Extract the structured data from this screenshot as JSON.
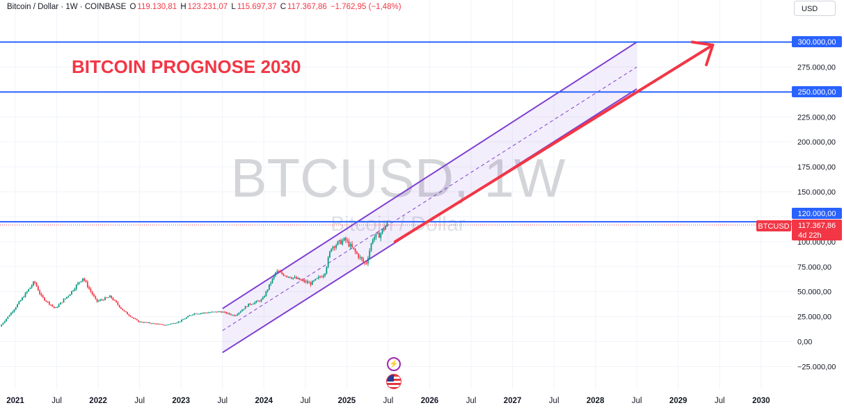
{
  "header": {
    "symbol_title": "Bitcoin / Dollar · 1W · COINBASE",
    "open_label": "O",
    "open": "119.130,81",
    "high_label": "H",
    "high": "123.231,07",
    "low_label": "L",
    "low": "115.697,37",
    "close_label": "C",
    "close": "117.367,86",
    "change": "−1.762,95 (−1,48%)",
    "currency": "USD"
  },
  "annotation": {
    "title": "BITCOIN PROGNOSE 2030",
    "color": "#f23645"
  },
  "watermark": {
    "symbol": "BTCUSD, 1W",
    "name": "Bitcoin / Dollar"
  },
  "price_badges": {
    "level_300": "300.000,00",
    "level_250": "250.000,00",
    "level_120": "120.000,00",
    "ticker": "BTCUSD",
    "last_price": "117.367,86",
    "countdown": "4d 22h"
  },
  "events": {
    "icon_1": "lightning-icon",
    "icon_2": "us-flag-icon"
  },
  "colors": {
    "up": "#089981",
    "down": "#f23645",
    "channel": "#7e3fd1",
    "hline": "#2962ff",
    "arrow": "#f23645"
  },
  "chart_data": {
    "type": "candlestick",
    "title": "Bitcoin / Dollar · 1W · COINBASE",
    "ylim": [
      -37000,
      316000
    ],
    "y_ticks": [
      -25000,
      0,
      25000,
      50000,
      75000,
      100000,
      150000,
      175000,
      200000,
      225000,
      275000
    ],
    "y_tick_labels": [
      "−25.000,00",
      "0,00",
      "25.000,00",
      "50.000,00",
      "75.000,00",
      "100.000,00",
      "150.000,00",
      "175.000,00",
      "200.000,00",
      "225.000,00",
      "275.000,00"
    ],
    "x_range": [
      "2020-11",
      "2030-06"
    ],
    "x_ticks": [
      "2021-01",
      "2021-07",
      "2022-01",
      "2022-07",
      "2023-01",
      "2023-07",
      "2024-01",
      "2024-07",
      "2025-01",
      "2025-07",
      "2026-01",
      "2026-07",
      "2027-01",
      "2027-07",
      "2028-01",
      "2028-07",
      "2029-01",
      "2029-07",
      "2030-01"
    ],
    "x_tick_labels": [
      "2021",
      "Jul",
      "2022",
      "Jul",
      "2023",
      "Jul",
      "2024",
      "Jul",
      "2025",
      "Jul",
      "2026",
      "Jul",
      "2027",
      "Jul",
      "2028",
      "Jul",
      "2029",
      "Jul",
      "2030"
    ],
    "price_path": [
      [
        "2020-11",
        15000
      ],
      [
        "2021-01",
        32000
      ],
      [
        "2021-04",
        60000
      ],
      [
        "2021-05",
        45000
      ],
      [
        "2021-07",
        33000
      ],
      [
        "2021-09",
        47000
      ],
      [
        "2021-11",
        64000
      ],
      [
        "2022-01",
        40000
      ],
      [
        "2022-03",
        45000
      ],
      [
        "2022-05",
        30000
      ],
      [
        "2022-07",
        20000
      ],
      [
        "2022-11",
        16500
      ],
      [
        "2023-01",
        20000
      ],
      [
        "2023-03",
        28000
      ],
      [
        "2023-07",
        30000
      ],
      [
        "2023-09",
        26000
      ],
      [
        "2023-11",
        37000
      ],
      [
        "2024-01",
        42000
      ],
      [
        "2024-03",
        70000
      ],
      [
        "2024-05",
        65000
      ],
      [
        "2024-08",
        58000
      ],
      [
        "2024-10",
        68000
      ],
      [
        "2024-11",
        95000
      ],
      [
        "2025-01",
        102000
      ],
      [
        "2025-03",
        85000
      ],
      [
        "2025-04",
        77000
      ],
      [
        "2025-05",
        104000
      ],
      [
        "2025-06",
        107000
      ],
      [
        "2025-07",
        117367
      ]
    ],
    "horizontal_levels": [
      300000,
      250000,
      117367.86
    ],
    "channel": {
      "upper": [
        [
          "2023-07",
          33000
        ],
        [
          "2028-07",
          300000
        ]
      ],
      "middle": [
        [
          "2023-07",
          11000
        ],
        [
          "2028-07",
          275000
        ]
      ],
      "lower": [
        [
          "2023-07",
          -11000
        ],
        [
          "2028-07",
          253000
        ]
      ]
    },
    "forecast_arrow": [
      [
        "2025-08",
        100000
      ],
      [
        "2029-06",
        297000
      ]
    ]
  }
}
